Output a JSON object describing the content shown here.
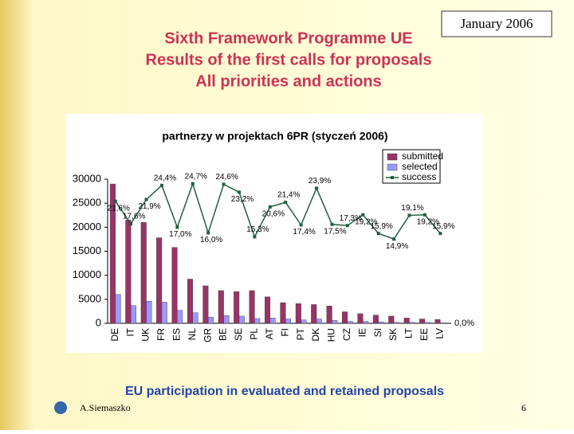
{
  "slide": {
    "date": "January 2006",
    "title_lines": [
      "Sixth Framework Programme UE",
      "Results of the first calls for proposals",
      "All priorities and actions"
    ],
    "footer": "EU participation in evaluated and retained proposals",
    "author": "A.Siemaszko",
    "page": "6"
  },
  "chart_data": {
    "type": "bar",
    "title": "partnerzy w projektach 6PR (styczeń 2006)",
    "categories": [
      "DE",
      "IT",
      "UK",
      "FR",
      "ES",
      "NL",
      "GR",
      "BE",
      "SE",
      "PL",
      "AT",
      "FI",
      "PT",
      "DK",
      "HU",
      "CZ",
      "IE",
      "SI",
      "SK",
      "LT",
      "EE",
      "LV"
    ],
    "series": [
      {
        "name": "submitted",
        "color": "#993366",
        "values": [
          29000,
          21500,
          21000,
          17800,
          15800,
          9200,
          7800,
          6800,
          6600,
          6800,
          5500,
          4300,
          4100,
          3900,
          3600,
          2400,
          2000,
          1700,
          1500,
          1100,
          900,
          800
        ]
      },
      {
        "name": "selected",
        "color": "#9999ff",
        "values": [
          6000,
          3700,
          4600,
          4400,
          2700,
          2200,
          1300,
          1600,
          1500,
          1000,
          1100,
          900,
          700,
          900,
          600,
          400,
          400,
          300,
          200,
          200,
          200,
          100
        ]
      },
      {
        "name": "success",
        "color": "#1f5f3f",
        "type": "line",
        "axis": "y2",
        "values": [
          21.6,
          17.6,
          21.9,
          24.4,
          17.0,
          24.7,
          16.0,
          24.6,
          23.2,
          15.3,
          20.6,
          21.4,
          17.4,
          23.9,
          17.5,
          17.3,
          19.2,
          15.9,
          14.9,
          19.1,
          19.2,
          15.9
        ],
        "value_labels": [
          "21,6%",
          "17,6%",
          "21,9%",
          "24,4%",
          "17,0%",
          "24,7%",
          "16,0%",
          "24,6%",
          "23,2%",
          "15,3%",
          "20,6%",
          "21,4%",
          "17,4%",
          "23,9%",
          "17,5%",
          "17,3%",
          "19,2%",
          "15,9%",
          "14,9%",
          "19,1%",
          "19,2%",
          "15,9%"
        ]
      }
    ],
    "ylim": [
      0,
      30000
    ],
    "yticks": [
      0,
      5000,
      10000,
      15000,
      20000,
      25000,
      30000
    ],
    "y2lim": [
      0,
      25.5
    ],
    "y2ticks": [
      {
        "value": 0,
        "label": "0,0%"
      }
    ],
    "legend": "upper right"
  }
}
